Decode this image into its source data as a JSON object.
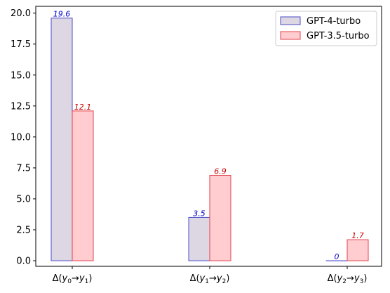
{
  "chart_data": {
    "type": "bar",
    "categories": [
      {
        "prefix": "Δ(",
        "a": "y",
        "a_sub": "0",
        "arrow": "→",
        "b": "y",
        "b_sub": "1",
        "suffix": ")"
      },
      {
        "prefix": "Δ(",
        "a": "y",
        "a_sub": "1",
        "arrow": "→",
        "b": "y",
        "b_sub": "2",
        "suffix": ")"
      },
      {
        "prefix": "Δ(",
        "a": "y",
        "a_sub": "2",
        "arrow": "→",
        "b": "y",
        "b_sub": "3",
        "suffix": ")"
      }
    ],
    "series": [
      {
        "name": "GPT-4-turbo",
        "values": [
          19.6,
          3.5,
          0
        ],
        "labels": [
          "19.6",
          "3.5",
          "0"
        ],
        "fill": "#ddd6e3",
        "edge": "#4b4bc8",
        "label_color": "#0000cc"
      },
      {
        "name": "GPT-3.5-turbo",
        "values": [
          12.1,
          6.9,
          1.7
        ],
        "labels": [
          "12.1",
          "6.9",
          "1.7"
        ],
        "fill": "#ffcccf",
        "edge": "#e0424d",
        "label_color": "#cc0000"
      }
    ],
    "ylim": [
      -0.45,
      20.55
    ],
    "yticks": [
      "0.0",
      "2.5",
      "5.0",
      "7.5",
      "10.0",
      "12.5",
      "15.0",
      "17.5",
      "20.0"
    ],
    "ytick_values": [
      0,
      2.5,
      5,
      7.5,
      10,
      12.5,
      15,
      17.5,
      20
    ],
    "legend_position": "top-right",
    "grid": false,
    "title": "",
    "xlabel": "",
    "ylabel": ""
  }
}
